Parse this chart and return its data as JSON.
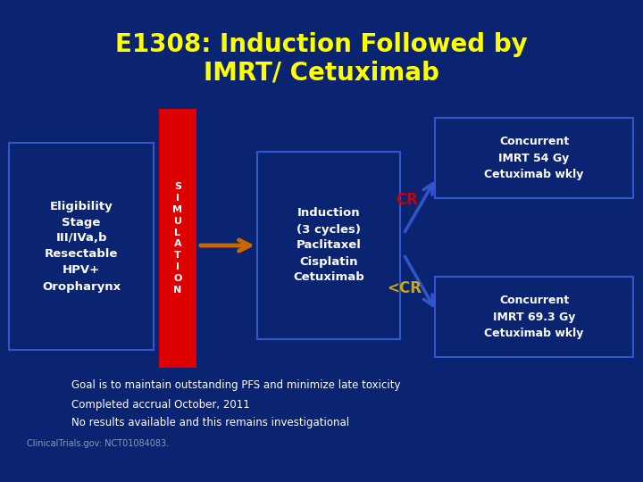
{
  "title_line1": "E1308: Induction Followed by",
  "title_line2": "IMRT/ Cetuximab",
  "title_color": "#FFFF00",
  "bg_color": "#0A2472",
  "eligibility_text": "Eligibility\nStage\nIII/IVa,b\nResectable\nHPV+\nOropharynx",
  "simulation_text": "S\nI\nM\nU\nL\nA\nT\nI\nO\nN",
  "induction_text": "Induction\n(3 cycles)\nPaclitaxel\nCisplatin\nCetuximab",
  "cr_box_text": "Concurrent\nIMRT 54 Gy\nCetuximab wkly",
  "lcr_box_text": "Concurrent\nIMRT 69.3 Gy\nCetuximab wkly",
  "cr_label": "CR",
  "lcr_label": "<CR",
  "footer_line1": "Goal is to maintain outstanding PFS and minimize late toxicity",
  "footer_line2": "Completed accrual October, 2011",
  "footer_line3": "No results available and this remains investigational",
  "footer_line4": "ClinicalTrials.gov: NCT01084083.",
  "box_border_color": "#3355CC",
  "sim_bar_color": "#DD0000",
  "arrow_color_orange": "#CC6600",
  "arrow_color_blue": "#3355CC",
  "cr_color": "#CC0000",
  "lcr_color": "#CCAA00",
  "white": "#FFFFFF",
  "yellow": "#FFFF00",
  "light_blue_gray": "#8899BB"
}
